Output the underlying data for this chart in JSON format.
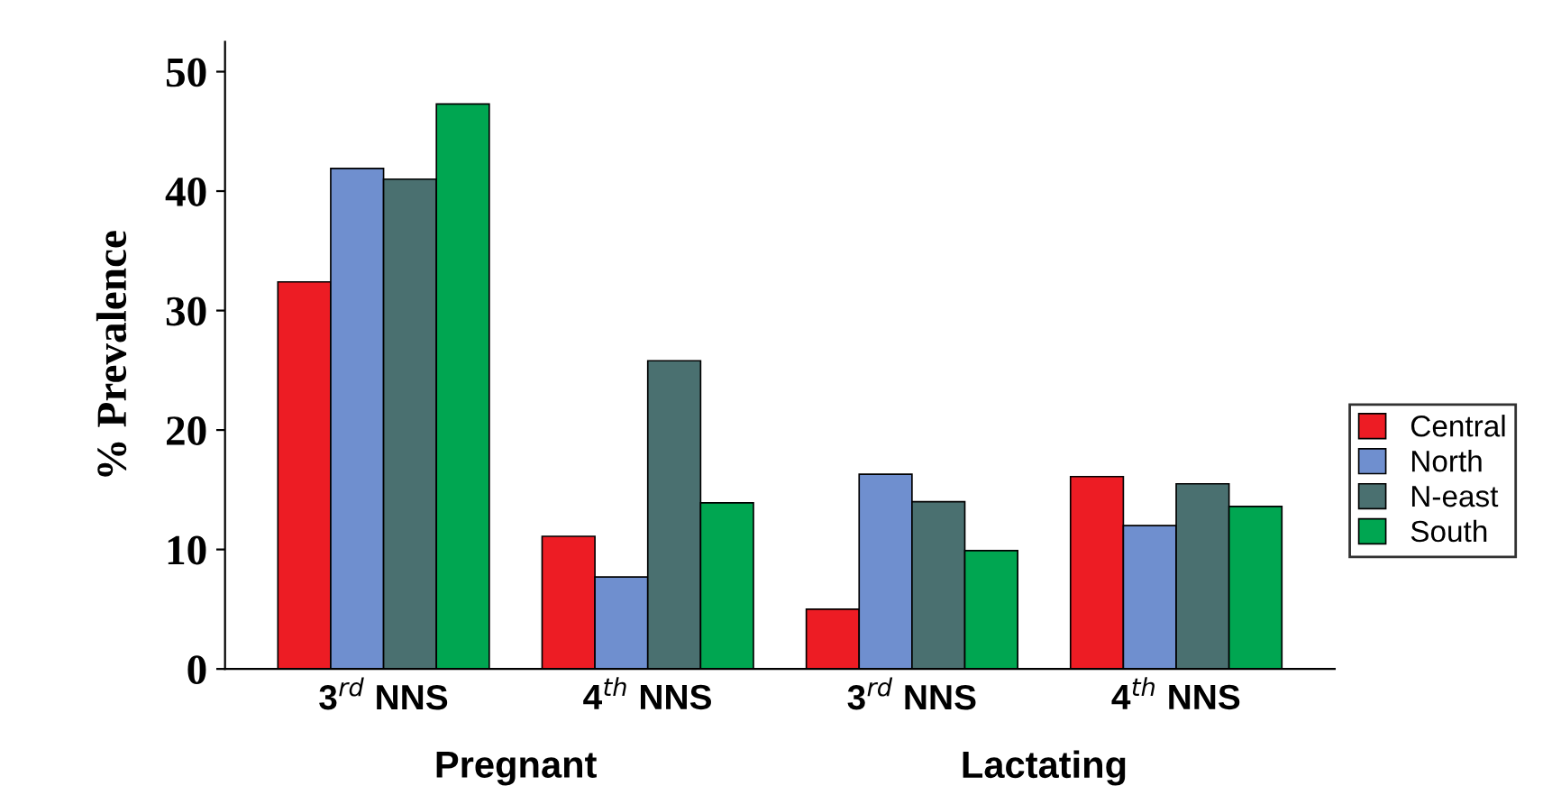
{
  "chart_data": {
    "type": "bar",
    "ylabel": "% Prevalence",
    "categories": [
      "3$^{rd}$ NNS",
      "4$^{th}$ NNS",
      "3$^{rd}$ NNS",
      "4$^{th}$ NNS"
    ],
    "series": [
      {
        "name": "Central",
        "color": "#ed1c24",
        "values": [
          32.4,
          11.1,
          5.0,
          16.1
        ]
      },
      {
        "name": "North",
        "color": "#6f8fcf",
        "values": [
          41.9,
          7.7,
          16.3,
          12.0
        ]
      },
      {
        "name": "N-east",
        "color": "#4a7070",
        "values": [
          41.0,
          25.8,
          14.0,
          15.5
        ]
      },
      {
        "name": "South",
        "color": "#00a651",
        "values": [
          47.3,
          13.9,
          9.9,
          13.6
        ]
      }
    ],
    "annotations": [
      "Pregnant",
      "Lactating"
    ],
    "ylim": [
      0,
      52.5
    ],
    "yticks": [
      0,
      10,
      20,
      30,
      40,
      50
    ],
    "grid": false,
    "legend": "right"
  }
}
